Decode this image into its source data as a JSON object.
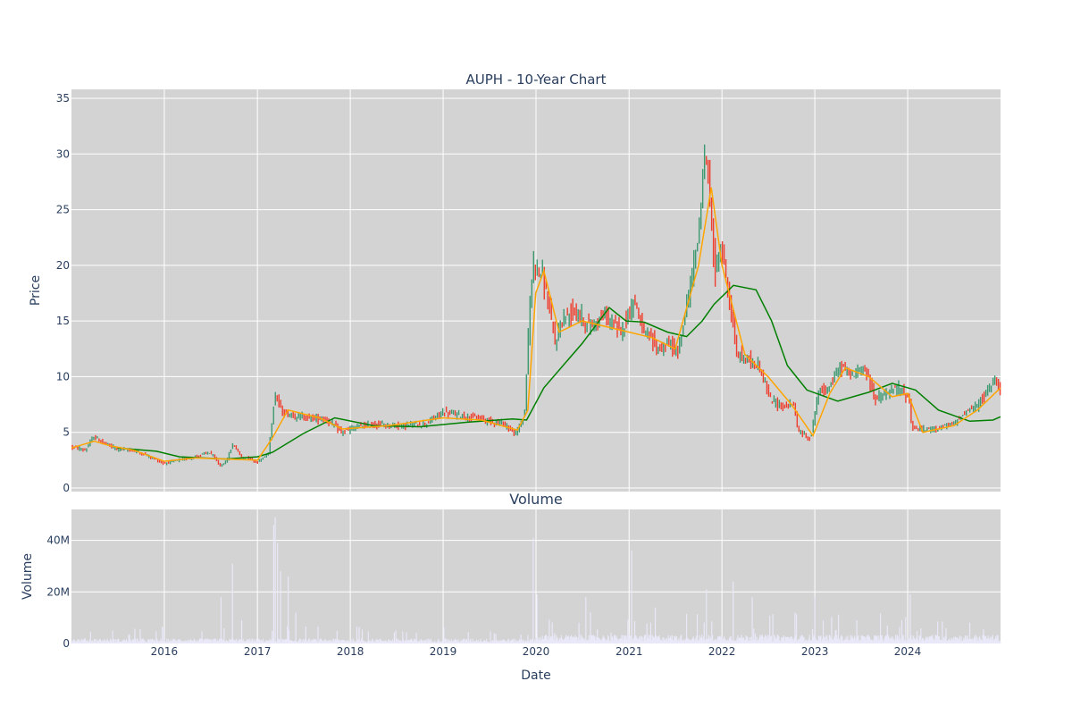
{
  "chart_data": [
    {
      "type": "candlestick",
      "title": "AUPH - 10-Year Chart",
      "ylabel": "Price",
      "xlabel": "Date",
      "x_range": [
        "2015-01-01",
        "2024-12-31"
      ],
      "ylim": [
        0,
        35
      ],
      "grid": true,
      "x_ticks": [
        "2016",
        "2017",
        "2018",
        "2019",
        "2020",
        "2021",
        "2022",
        "2023",
        "2024"
      ],
      "y_ticks": [
        "0",
        "5",
        "10",
        "15",
        "20",
        "25",
        "30",
        "35"
      ],
      "colors": {
        "background": "#d3d3d3",
        "increasing": "#3d9970",
        "decreasing": "#ef3e2d",
        "ma_short": "#ffa500",
        "ma_long": "#008000"
      },
      "price_path": [
        [
          "2015-01-01",
          3.7
        ],
        [
          "2015-03-01",
          3.4
        ],
        [
          "2015-04-01",
          4.6
        ],
        [
          "2015-05-15",
          4.0
        ],
        [
          "2015-07-01",
          3.5
        ],
        [
          "2015-09-01",
          3.4
        ],
        [
          "2015-11-01",
          2.9
        ],
        [
          "2016-01-01",
          2.2
        ],
        [
          "2016-03-01",
          2.5
        ],
        [
          "2016-05-01",
          2.8
        ],
        [
          "2016-07-01",
          3.2
        ],
        [
          "2016-08-10",
          2.0
        ],
        [
          "2016-09-01",
          2.3
        ],
        [
          "2016-10-01",
          4.0
        ],
        [
          "2016-11-01",
          2.8
        ],
        [
          "2016-12-01",
          2.7
        ],
        [
          "2017-01-01",
          2.3
        ],
        [
          "2017-02-15",
          3.0
        ],
        [
          "2017-03-15",
          8.5
        ],
        [
          "2017-04-10",
          6.8
        ],
        [
          "2017-06-01",
          6.5
        ],
        [
          "2017-08-01",
          6.3
        ],
        [
          "2017-10-01",
          6.2
        ],
        [
          "2017-12-01",
          5.0
        ],
        [
          "2018-02-01",
          5.5
        ],
        [
          "2018-05-01",
          5.7
        ],
        [
          "2018-08-01",
          5.6
        ],
        [
          "2018-11-01",
          5.8
        ],
        [
          "2019-01-01",
          6.8
        ],
        [
          "2019-03-01",
          6.6
        ],
        [
          "2019-06-01",
          6.2
        ],
        [
          "2019-09-01",
          5.8
        ],
        [
          "2019-10-15",
          4.8
        ],
        [
          "2019-11-20",
          6.5
        ],
        [
          "2019-12-10",
          16.0
        ],
        [
          "2019-12-25",
          20.5
        ],
        [
          "2020-02-01",
          19.0
        ],
        [
          "2020-03-20",
          13.0
        ],
        [
          "2020-04-15",
          15.0
        ],
        [
          "2020-06-01",
          16.0
        ],
        [
          "2020-08-01",
          14.5
        ],
        [
          "2020-10-01",
          15.5
        ],
        [
          "2020-12-01",
          14.0
        ],
        [
          "2021-01-25",
          17.0
        ],
        [
          "2021-03-01",
          14.0
        ],
        [
          "2021-05-01",
          12.5
        ],
        [
          "2021-06-15",
          13.0
        ],
        [
          "2021-07-15",
          12.0
        ],
        [
          "2021-09-01",
          18.0
        ],
        [
          "2021-10-01",
          22.0
        ],
        [
          "2021-11-01",
          31.0
        ],
        [
          "2021-11-20",
          25.0
        ],
        [
          "2021-12-10",
          19.0
        ],
        [
          "2022-01-01",
          22.0
        ],
        [
          "2022-02-10",
          16.0
        ],
        [
          "2022-03-01",
          12.0
        ],
        [
          "2022-04-15",
          11.5
        ],
        [
          "2022-06-01",
          11.0
        ],
        [
          "2022-07-10",
          8.0
        ],
        [
          "2022-09-01",
          7.3
        ],
        [
          "2022-10-15",
          7.5
        ],
        [
          "2022-11-01",
          5.0
        ],
        [
          "2022-12-20",
          4.5
        ],
        [
          "2023-01-15",
          8.5
        ],
        [
          "2023-03-01",
          9.0
        ],
        [
          "2023-04-15",
          11.0
        ],
        [
          "2023-06-01",
          10.0
        ],
        [
          "2023-07-15",
          11.0
        ],
        [
          "2023-09-01",
          8.0
        ],
        [
          "2023-10-15",
          8.5
        ],
        [
          "2023-12-01",
          9.0
        ],
        [
          "2024-01-10",
          8.0
        ],
        [
          "2024-01-20",
          5.5
        ],
        [
          "2024-03-01",
          5.2
        ],
        [
          "2024-05-01",
          5.4
        ],
        [
          "2024-07-01",
          5.7
        ],
        [
          "2024-08-15",
          6.8
        ],
        [
          "2024-10-01",
          7.3
        ],
        [
          "2024-11-15",
          8.8
        ],
        [
          "2024-12-15",
          10.0
        ],
        [
          "2024-12-31",
          9.0
        ]
      ],
      "ma_short": [
        [
          "2015-01-01",
          3.6
        ],
        [
          "2015-04-01",
          4.2
        ],
        [
          "2015-06-01",
          3.8
        ],
        [
          "2015-09-01",
          3.4
        ],
        [
          "2016-01-01",
          2.4
        ],
        [
          "2016-05-01",
          2.7
        ],
        [
          "2016-09-01",
          2.6
        ],
        [
          "2017-01-01",
          2.5
        ],
        [
          "2017-03-01",
          4.5
        ],
        [
          "2017-05-01",
          7.0
        ],
        [
          "2017-09-01",
          6.3
        ],
        [
          "2017-12-01",
          5.3
        ],
        [
          "2018-06-01",
          5.6
        ],
        [
          "2019-01-01",
          6.3
        ],
        [
          "2019-06-01",
          6.1
        ],
        [
          "2019-10-20",
          5.2
        ],
        [
          "2019-11-30",
          7.0
        ],
        [
          "2019-12-31",
          17.5
        ],
        [
          "2020-02-01",
          19.5
        ],
        [
          "2020-04-01",
          14.0
        ],
        [
          "2020-07-01",
          15.0
        ],
        [
          "2021-01-01",
          14.0
        ],
        [
          "2021-04-01",
          13.5
        ],
        [
          "2021-07-01",
          12.5
        ],
        [
          "2021-10-01",
          20.0
        ],
        [
          "2021-11-20",
          27.0
        ],
        [
          "2022-01-01",
          20.0
        ],
        [
          "2022-04-01",
          12.0
        ],
        [
          "2022-07-01",
          10.0
        ],
        [
          "2022-10-01",
          7.5
        ],
        [
          "2022-12-25",
          4.7
        ],
        [
          "2023-03-01",
          8.5
        ],
        [
          "2023-05-01",
          10.8
        ],
        [
          "2023-08-01",
          10.0
        ],
        [
          "2023-11-01",
          8.2
        ],
        [
          "2024-01-01",
          8.5
        ],
        [
          "2024-03-01",
          5.0
        ],
        [
          "2024-07-01",
          5.6
        ],
        [
          "2024-10-01",
          7.0
        ],
        [
          "2024-12-31",
          9.0
        ]
      ],
      "ma_long": [
        [
          "2015-07-01",
          3.6
        ],
        [
          "2015-12-01",
          3.3
        ],
        [
          "2016-03-01",
          2.8
        ],
        [
          "2016-09-01",
          2.6
        ],
        [
          "2017-01-01",
          2.8
        ],
        [
          "2017-03-01",
          3.2
        ],
        [
          "2017-07-01",
          4.9
        ],
        [
          "2017-11-01",
          6.3
        ],
        [
          "2018-04-01",
          5.6
        ],
        [
          "2018-10-01",
          5.5
        ],
        [
          "2019-04-01",
          5.9
        ],
        [
          "2019-10-01",
          6.2
        ],
        [
          "2019-11-25",
          6.1
        ],
        [
          "2020-02-01",
          9.0
        ],
        [
          "2020-07-01",
          13.0
        ],
        [
          "2020-10-15",
          16.2
        ],
        [
          "2020-12-20",
          15.0
        ],
        [
          "2021-03-01",
          14.9
        ],
        [
          "2021-06-01",
          14.0
        ],
        [
          "2021-08-15",
          13.6
        ],
        [
          "2021-10-15",
          15.0
        ],
        [
          "2021-12-01",
          16.5
        ],
        [
          "2022-02-15",
          18.2
        ],
        [
          "2022-05-15",
          17.8
        ],
        [
          "2022-07-15",
          15.0
        ],
        [
          "2022-09-15",
          11.0
        ],
        [
          "2022-12-01",
          8.8
        ],
        [
          "2023-04-01",
          7.8
        ],
        [
          "2023-08-01",
          8.6
        ],
        [
          "2023-11-01",
          9.4
        ],
        [
          "2024-02-01",
          8.8
        ],
        [
          "2024-05-01",
          7.0
        ],
        [
          "2024-09-01",
          6.0
        ],
        [
          "2024-12-01",
          6.1
        ],
        [
          "2024-12-31",
          6.4
        ]
      ]
    },
    {
      "type": "bar",
      "title": "Volume",
      "ylabel": "Volume",
      "xlabel": "Date",
      "ylim": [
        0,
        52000000
      ],
      "grid": true,
      "x_ticks": [
        "2016",
        "2017",
        "2018",
        "2019",
        "2020",
        "2021",
        "2022",
        "2023",
        "2024"
      ],
      "y_ticks": [
        "0",
        "20M",
        "40M"
      ],
      "colors": {
        "bar": "#e8e8f8"
      },
      "baseline_volume": 1200000,
      "spikes": [
        [
          "2016-08-10",
          18000000
        ],
        [
          "2016-09-25",
          31000000
        ],
        [
          "2016-11-01",
          9000000
        ],
        [
          "2017-03-05",
          46000000
        ],
        [
          "2017-03-12",
          49000000
        ],
        [
          "2017-03-20",
          39000000
        ],
        [
          "2017-04-01",
          28000000
        ],
        [
          "2017-05-01",
          26000000
        ],
        [
          "2017-06-01",
          12000000
        ],
        [
          "2019-12-20",
          41000000
        ],
        [
          "2020-01-05",
          19000000
        ],
        [
          "2020-07-15",
          18000000
        ],
        [
          "2021-01-10",
          36000000
        ],
        [
          "2021-04-15",
          14000000
        ],
        [
          "2021-11-01",
          21000000
        ],
        [
          "2022-02-15",
          24000000
        ],
        [
          "2022-05-01",
          18000000
        ],
        [
          "2022-10-15",
          12000000
        ],
        [
          "2023-01-01",
          18000000
        ],
        [
          "2023-06-15",
          9000000
        ],
        [
          "2024-01-10",
          19000000
        ],
        [
          "2024-06-01",
          6000000
        ]
      ]
    }
  ]
}
